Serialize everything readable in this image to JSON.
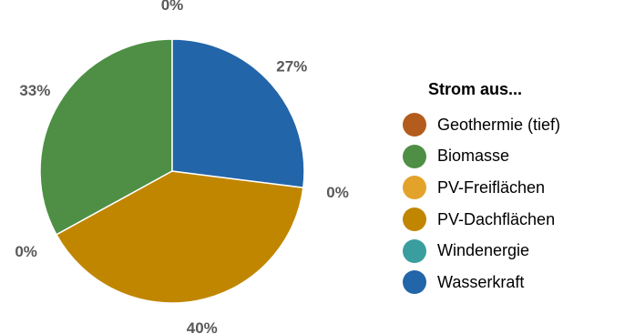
{
  "chart_data": {
    "type": "pie",
    "legend_title": "Strom aus...",
    "legend_position": "right",
    "slices": [
      {
        "name": "Geothermie (tief)",
        "value": 0,
        "label": "0%",
        "color": "#b35c1e"
      },
      {
        "name": "Biomasse",
        "value": 33,
        "label": "33%",
        "color": "#4e8f45"
      },
      {
        "name": "PV-Freiflächen",
        "value": 0,
        "label": "0%",
        "color": "#e3a32b"
      },
      {
        "name": "PV-Dachflächen",
        "value": 40,
        "label": "40%",
        "color": "#c08600"
      },
      {
        "name": "Windenergie",
        "value": 0,
        "label": "0%",
        "color": "#3a9e9e"
      },
      {
        "name": "Wasserkraft",
        "value": 27,
        "label": "27%",
        "color": "#2265a8"
      }
    ]
  }
}
